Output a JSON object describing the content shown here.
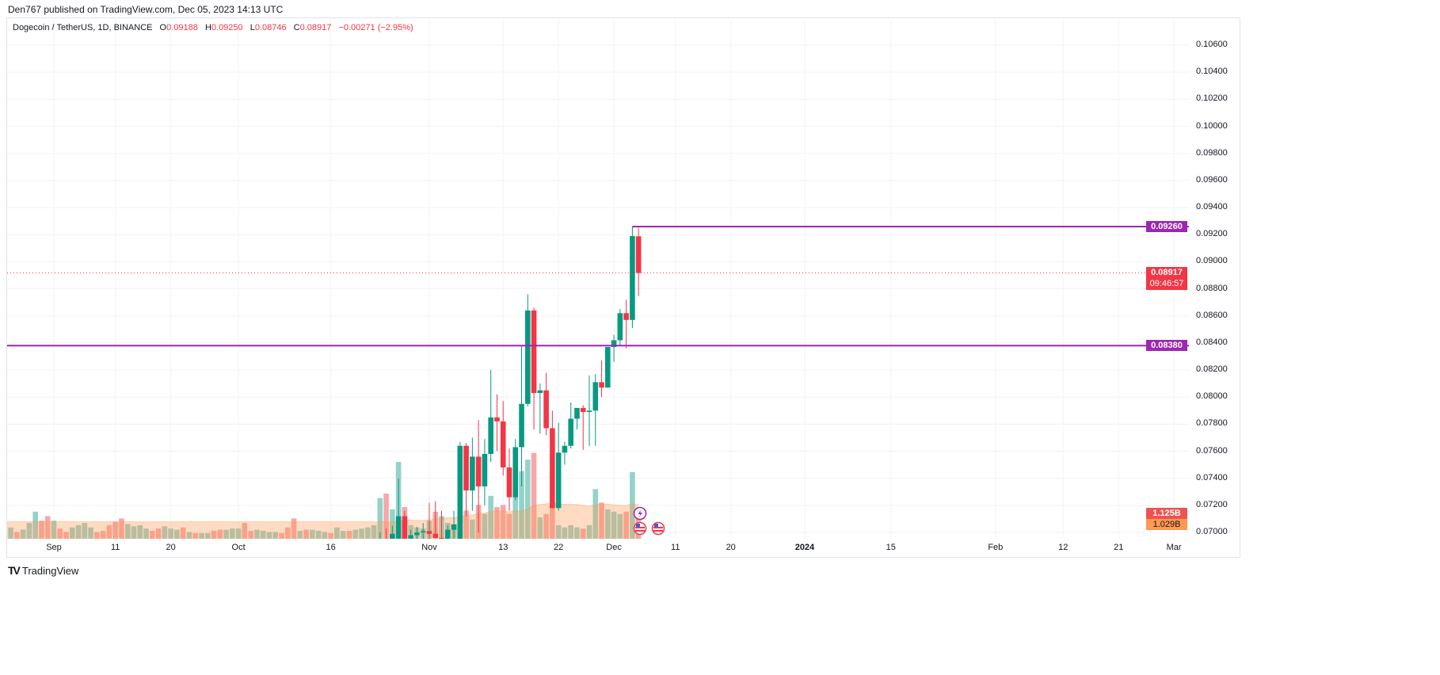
{
  "publisher": "Den767 published on TradingView.com, Dec 05, 2023 14:13 UTC",
  "legend": {
    "symbol": "Dogecoin / TetherUS, 1D, BINANCE",
    "o_key": "O",
    "o": "0.09188",
    "h_key": "H",
    "h": "0.09250",
    "l_key": "L",
    "l": "0.08746",
    "c_key": "C",
    "c": "0.08917",
    "change": "−0.00271 (−2.95%)"
  },
  "price_axis": [
    "0.10600",
    "0.10400",
    "0.10200",
    "0.10000",
    "0.09800",
    "0.09600",
    "0.09400",
    "0.09200",
    "0.09000",
    "0.08800",
    "0.08600",
    "0.08400",
    "0.08200",
    "0.08000",
    "0.07800",
    "0.07600",
    "0.07400",
    "0.07200",
    "0.07000"
  ],
  "time_axis": [
    {
      "label": "Sep",
      "day": 0,
      "bold": false
    },
    {
      "label": "11",
      "day": 10,
      "bold": false
    },
    {
      "label": "20",
      "day": 19,
      "bold": false
    },
    {
      "label": "Oct",
      "day": 30,
      "bold": false
    },
    {
      "label": "16",
      "day": 45,
      "bold": false
    },
    {
      "label": "Nov",
      "day": 61,
      "bold": false
    },
    {
      "label": "13",
      "day": 73,
      "bold": false
    },
    {
      "label": "22",
      "day": 82,
      "bold": false
    },
    {
      "label": "Dec",
      "day": 91,
      "bold": false
    },
    {
      "label": "11",
      "day": 101,
      "bold": false
    },
    {
      "label": "20",
      "day": 110,
      "bold": false
    },
    {
      "label": "2024",
      "day": 122,
      "bold": true
    },
    {
      "label": "15",
      "day": 136,
      "bold": false
    },
    {
      "label": "Feb",
      "day": 153,
      "bold": false
    },
    {
      "label": "12",
      "day": 164,
      "bold": false
    },
    {
      "label": "21",
      "day": 173,
      "bold": false
    },
    {
      "label": "Mar",
      "day": 182,
      "bold": false
    }
  ],
  "levels": {
    "resistance": {
      "price": 0.0926,
      "label": "0.09260"
    },
    "support": {
      "price": 0.0838,
      "label": "0.08380"
    },
    "last": {
      "price": 0.08917,
      "label": "0.08917",
      "countdown": "09:46:57"
    }
  },
  "volume_labels": {
    "volume": "1.125B",
    "ma": "1.029B"
  },
  "colors": {
    "up": "#089981",
    "down": "#F23645",
    "level": "#9C27B0",
    "vol_up": "#93d3c9",
    "vol_down": "#f7a7aa",
    "ma": "#FF9850"
  },
  "footer": {
    "logo": "TV",
    "brand": "TradingView"
  },
  "chart_data": {
    "type": "candlestick",
    "symbol": "DOGEUSDT",
    "interval": "1D",
    "first_candle_day_from_sep1": 53,
    "ohlc": [
      [
        0.068,
        0.07,
        0.0672,
        0.0695
      ],
      [
        0.0695,
        0.0703,
        0.068,
        0.0688
      ],
      [
        0.0688,
        0.0705,
        0.0684,
        0.0699
      ],
      [
        0.069,
        0.074,
        0.0688,
        0.0712
      ],
      [
        0.0712,
        0.0716,
        0.069,
        0.0695
      ],
      [
        0.0695,
        0.0702,
        0.0688,
        0.0698
      ],
      [
        0.0698,
        0.0704,
        0.069,
        0.07
      ],
      [
        0.07,
        0.0707,
        0.0684,
        0.0701
      ],
      [
        0.0701,
        0.0722,
        0.069,
        0.0699
      ],
      [
        0.0699,
        0.0723,
        0.068,
        0.0696
      ],
      [
        0.0696,
        0.0716,
        0.0685,
        0.0694
      ],
      [
        0.0694,
        0.0705,
        0.069,
        0.0702
      ],
      [
        0.0702,
        0.0716,
        0.069,
        0.0706
      ],
      [
        0.069,
        0.0767,
        0.0688,
        0.0764
      ],
      [
        0.0764,
        0.0766,
        0.0712,
        0.0731
      ],
      [
        0.0731,
        0.077,
        0.0716,
        0.0756
      ],
      [
        0.0756,
        0.0783,
        0.07,
        0.0734
      ],
      [
        0.0734,
        0.0769,
        0.072,
        0.0758
      ],
      [
        0.0758,
        0.082,
        0.0752,
        0.0785
      ],
      [
        0.0785,
        0.0802,
        0.076,
        0.0782
      ],
      [
        0.0782,
        0.0797,
        0.0742,
        0.0748
      ],
      [
        0.0748,
        0.0762,
        0.0716,
        0.0726
      ],
      [
        0.0726,
        0.0769,
        0.0724,
        0.0763
      ],
      [
        0.0763,
        0.0838,
        0.0734,
        0.0795
      ],
      [
        0.0795,
        0.0876,
        0.0793,
        0.0864
      ],
      [
        0.0864,
        0.0866,
        0.0776,
        0.0803
      ],
      [
        0.0803,
        0.081,
        0.0773,
        0.0805
      ],
      [
        0.0805,
        0.0818,
        0.0772,
        0.0777
      ],
      [
        0.0777,
        0.079,
        0.0718,
        0.0718
      ],
      [
        0.0718,
        0.0781,
        0.0716,
        0.0759
      ],
      [
        0.0759,
        0.0767,
        0.075,
        0.0764
      ],
      [
        0.0764,
        0.0796,
        0.0762,
        0.0784
      ],
      [
        0.0784,
        0.0791,
        0.0776,
        0.0792
      ],
      [
        0.0792,
        0.0794,
        0.0761,
        0.0789
      ],
      [
        0.0789,
        0.0816,
        0.0764,
        0.079
      ],
      [
        0.079,
        0.0817,
        0.0764,
        0.0811
      ],
      [
        0.0811,
        0.0827,
        0.08,
        0.0807
      ],
      [
        0.0807,
        0.0836,
        0.0807,
        0.0837
      ],
      [
        0.0837,
        0.0846,
        0.0826,
        0.0842
      ],
      [
        0.0842,
        0.0865,
        0.0838,
        0.0862
      ],
      [
        0.0862,
        0.0872,
        0.0836,
        0.0857
      ],
      [
        0.0857,
        0.0926,
        0.0851,
        0.0919
      ],
      [
        0.09188,
        0.0925,
        0.08746,
        0.08917
      ]
    ],
    "first_volume_day_from_sep1": -7,
    "volume_billions": [
      [
        0.5,
        "u"
      ],
      [
        0.3,
        "d"
      ],
      [
        0.4,
        "u"
      ],
      [
        0.7,
        "u"
      ],
      [
        1.2,
        "u"
      ],
      [
        0.8,
        "d"
      ],
      [
        1.0,
        "d"
      ],
      [
        0.8,
        "u"
      ],
      [
        0.45,
        "d"
      ],
      [
        0.3,
        "d"
      ],
      [
        0.5,
        "u"
      ],
      [
        0.6,
        "u"
      ],
      [
        0.7,
        "u"
      ],
      [
        0.5,
        "u"
      ],
      [
        0.3,
        "d"
      ],
      [
        0.35,
        "d"
      ],
      [
        0.6,
        "d"
      ],
      [
        0.75,
        "d"
      ],
      [
        0.9,
        "d"
      ],
      [
        0.65,
        "u"
      ],
      [
        0.55,
        "u"
      ],
      [
        0.6,
        "u"
      ],
      [
        0.45,
        "u"
      ],
      [
        0.35,
        "d"
      ],
      [
        0.45,
        "d"
      ],
      [
        0.55,
        "u"
      ],
      [
        0.45,
        "u"
      ],
      [
        0.4,
        "u"
      ],
      [
        0.5,
        "d"
      ],
      [
        0.3,
        "u"
      ],
      [
        0.25,
        "d"
      ],
      [
        0.25,
        "u"
      ],
      [
        0.25,
        "u"
      ],
      [
        0.35,
        "d"
      ],
      [
        0.4,
        "d"
      ],
      [
        0.4,
        "u"
      ],
      [
        0.45,
        "u"
      ],
      [
        0.45,
        "u"
      ],
      [
        0.7,
        "d"
      ],
      [
        0.35,
        "d"
      ],
      [
        0.4,
        "u"
      ],
      [
        0.35,
        "u"
      ],
      [
        0.3,
        "u"
      ],
      [
        0.3,
        "u"
      ],
      [
        0.25,
        "d"
      ],
      [
        0.5,
        "d"
      ],
      [
        0.9,
        "d"
      ],
      [
        0.35,
        "u"
      ],
      [
        0.4,
        "d"
      ],
      [
        0.4,
        "u"
      ],
      [
        0.35,
        "u"
      ],
      [
        0.3,
        "u"
      ],
      [
        0.25,
        "d"
      ],
      [
        0.5,
        "u"
      ],
      [
        0.35,
        "u"
      ],
      [
        0.35,
        "d"
      ],
      [
        0.4,
        "u"
      ],
      [
        0.45,
        "u"
      ],
      [
        0.5,
        "u"
      ],
      [
        0.6,
        "u"
      ],
      [
        1.8,
        "u"
      ],
      [
        2.0,
        "d"
      ],
      [
        1.3,
        "u"
      ],
      [
        3.4,
        "u"
      ],
      [
        1.4,
        "d"
      ],
      [
        0.6,
        "u"
      ],
      [
        0.5,
        "u"
      ],
      [
        0.45,
        "u"
      ],
      [
        0.8,
        "u"
      ],
      [
        1.2,
        "d"
      ],
      [
        1.0,
        "u"
      ],
      [
        0.7,
        "u"
      ],
      [
        0.6,
        "u"
      ],
      [
        1.2,
        "u"
      ],
      [
        1.25,
        "d"
      ],
      [
        0.85,
        "u"
      ],
      [
        1.5,
        "d"
      ],
      [
        1.1,
        "u"
      ],
      [
        1.9,
        "u"
      ],
      [
        1.4,
        "d"
      ],
      [
        1.5,
        "d"
      ],
      [
        1.1,
        "d"
      ],
      [
        2.4,
        "u"
      ],
      [
        3.0,
        "u"
      ],
      [
        3.5,
        "u"
      ],
      [
        3.8,
        "d"
      ],
      [
        0.95,
        "u"
      ],
      [
        1.1,
        "d"
      ],
      [
        1.6,
        "d"
      ],
      [
        0.6,
        "u"
      ],
      [
        0.5,
        "u"
      ],
      [
        0.6,
        "u"
      ],
      [
        0.5,
        "u"
      ],
      [
        0.45,
        "d"
      ],
      [
        0.6,
        "u"
      ],
      [
        2.2,
        "u"
      ],
      [
        1.6,
        "d"
      ],
      [
        1.3,
        "u"
      ],
      [
        1.2,
        "u"
      ],
      [
        1.1,
        "u"
      ],
      [
        1.2,
        "d"
      ],
      [
        2.95,
        "u"
      ],
      [
        1.125,
        "d"
      ]
    ],
    "volume_ma_period": 20,
    "ylim": [
      0.07,
      0.106
    ]
  }
}
